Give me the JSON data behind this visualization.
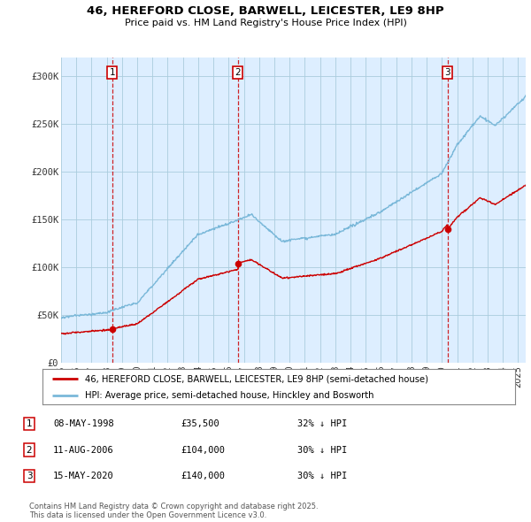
{
  "title_line1": "46, HEREFORD CLOSE, BARWELL, LEICESTER, LE9 8HP",
  "title_line2": "Price paid vs. HM Land Registry's House Price Index (HPI)",
  "xlim_start": 1995.0,
  "xlim_end": 2025.5,
  "ylim_min": 0,
  "ylim_max": 320000,
  "yticks": [
    0,
    50000,
    100000,
    150000,
    200000,
    250000,
    300000
  ],
  "ytick_labels": [
    "£0",
    "£50K",
    "£100K",
    "£150K",
    "£200K",
    "£250K",
    "£300K"
  ],
  "legend_line1": "46, HEREFORD CLOSE, BARWELL, LEICESTER, LE9 8HP (semi-detached house)",
  "legend_line2": "HPI: Average price, semi-detached house, Hinckley and Bosworth",
  "sale1_date": 1998.36,
  "sale1_price": 35500,
  "sale1_label": "1",
  "sale2_date": 2006.61,
  "sale2_price": 104000,
  "sale2_label": "2",
  "sale3_date": 2020.37,
  "sale3_price": 140000,
  "sale3_label": "3",
  "table_rows": [
    [
      "1",
      "08-MAY-1998",
      "£35,500",
      "32% ↓ HPI"
    ],
    [
      "2",
      "11-AUG-2006",
      "£104,000",
      "30% ↓ HPI"
    ],
    [
      "3",
      "15-MAY-2020",
      "£140,000",
      "30% ↓ HPI"
    ]
  ],
  "footer_text": "Contains HM Land Registry data © Crown copyright and database right 2025.\nThis data is licensed under the Open Government Licence v3.0.",
  "hpi_color": "#7ab8d9",
  "price_color": "#cc0000",
  "bg_color": "#ffffff",
  "chart_bg_color": "#ddeeff",
  "grid_color": "#aaccdd"
}
